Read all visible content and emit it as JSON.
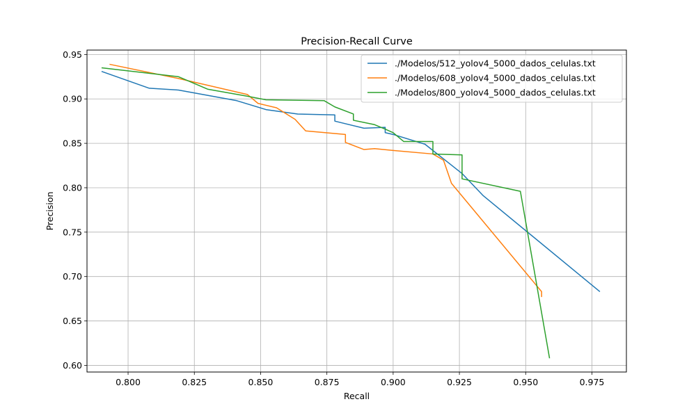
{
  "chart_data": {
    "type": "line",
    "title": "Precision-Recall Curve",
    "xlabel": "Recall",
    "ylabel": "Precision",
    "xlim": [
      0.7845,
      0.988
    ],
    "ylim": [
      0.5925,
      0.955
    ],
    "xticks": [
      0.8,
      0.825,
      0.85,
      0.875,
      0.9,
      0.925,
      0.95,
      0.975
    ],
    "xtick_labels": [
      "0.800",
      "0.825",
      "0.850",
      "0.875",
      "0.900",
      "0.925",
      "0.950",
      "0.975"
    ],
    "yticks": [
      0.6,
      0.65,
      0.7,
      0.75,
      0.8,
      0.85,
      0.9,
      0.95
    ],
    "ytick_labels": [
      "0.60",
      "0.65",
      "0.70",
      "0.75",
      "0.80",
      "0.85",
      "0.90",
      "0.95"
    ],
    "grid": true,
    "legend_position": "top-right",
    "series": [
      {
        "name": "./Modelos/512_yolov4_5000_dados_celulas.txt",
        "color": "#1f77b4",
        "x": [
          0.79,
          0.808,
          0.819,
          0.841,
          0.852,
          0.864,
          0.878,
          0.878,
          0.889,
          0.897,
          0.897,
          0.9,
          0.912,
          0.926,
          0.934,
          0.978
        ],
        "y": [
          0.931,
          0.912,
          0.91,
          0.898,
          0.888,
          0.883,
          0.882,
          0.875,
          0.867,
          0.868,
          0.862,
          0.86,
          0.849,
          0.816,
          0.791,
          0.683
        ]
      },
      {
        "name": "./Modelos/608_yolov4_5000_dados_celulas.txt",
        "color": "#ff7f0e",
        "x": [
          0.793,
          0.819,
          0.845,
          0.849,
          0.856,
          0.863,
          0.867,
          0.882,
          0.882,
          0.889,
          0.893,
          0.9,
          0.915,
          0.919,
          0.922,
          0.956,
          0.956
        ],
        "y": [
          0.939,
          0.923,
          0.905,
          0.895,
          0.89,
          0.877,
          0.864,
          0.86,
          0.851,
          0.843,
          0.844,
          0.842,
          0.838,
          0.831,
          0.805,
          0.683,
          0.677
        ]
      },
      {
        "name": "./Modelos/800_yolov4_5000_dados_celulas.txt",
        "color": "#2ca02c",
        "x": [
          0.79,
          0.819,
          0.83,
          0.845,
          0.852,
          0.874,
          0.878,
          0.885,
          0.885,
          0.893,
          0.897,
          0.9,
          0.904,
          0.915,
          0.915,
          0.926,
          0.926,
          0.948,
          0.959
        ],
        "y": [
          0.935,
          0.925,
          0.911,
          0.903,
          0.899,
          0.898,
          0.891,
          0.883,
          0.876,
          0.871,
          0.866,
          0.862,
          0.852,
          0.852,
          0.838,
          0.837,
          0.81,
          0.796,
          0.608
        ]
      }
    ]
  }
}
